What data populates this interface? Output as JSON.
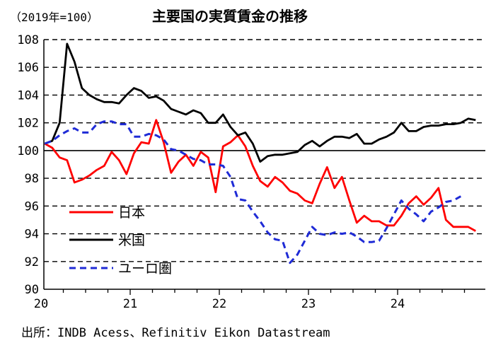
{
  "chart_data": {
    "type": "line",
    "title": "主要国の実質賃金の推移",
    "unit_label": "（2019年=100）",
    "source": "出所：INDB Acess、Refinitiv Eikon Datastream",
    "x_ticks": [
      "20",
      "21",
      "22",
      "23",
      "24"
    ],
    "x_start_month": 1,
    "ylim": [
      90,
      108
    ],
    "y_ticks": [
      90,
      92,
      94,
      96,
      98,
      100,
      102,
      104,
      106,
      108
    ],
    "grid": "dashed horizontal",
    "legend_position": "bottom-left",
    "series": [
      {
        "name": "日本",
        "color": "#ff0000",
        "dash": "solid",
        "values": [
          100.5,
          100.2,
          99.5,
          99.3,
          97.7,
          97.9,
          98.2,
          98.6,
          98.9,
          99.9,
          99.3,
          98.3,
          99.8,
          100.6,
          100.5,
          102.2,
          100.6,
          98.4,
          99.2,
          99.7,
          98.9,
          99.9,
          99.5,
          97.0,
          100.3,
          100.6,
          101.1,
          100.3,
          98.9,
          97.8,
          97.4,
          98.1,
          97.7,
          97.1,
          96.9,
          96.4,
          96.2,
          97.6,
          98.8,
          97.3,
          98.1,
          96.4,
          94.8,
          95.3,
          94.9,
          94.9,
          94.6,
          94.6,
          95.3,
          96.2,
          96.7,
          96.1,
          96.6,
          97.3,
          95.0,
          94.5,
          94.5,
          94.5,
          94.2
        ]
      },
      {
        "name": "米国",
        "color": "#000000",
        "dash": "solid",
        "values": [
          100.5,
          100.7,
          102.0,
          107.7,
          106.4,
          104.5,
          104.0,
          103.7,
          103.5,
          103.5,
          103.4,
          104.0,
          104.5,
          104.3,
          103.8,
          103.9,
          103.6,
          103.0,
          102.8,
          102.6,
          102.9,
          102.7,
          102.0,
          102.0,
          102.6,
          101.7,
          101.1,
          101.3,
          100.5,
          99.2,
          99.6,
          99.7,
          99.7,
          99.8,
          99.9,
          100.4,
          100.7,
          100.3,
          100.7,
          101.0,
          101.0,
          100.9,
          101.2,
          100.5,
          100.5,
          100.8,
          101.0,
          101.3,
          102.0,
          101.4,
          101.4,
          101.7,
          101.8,
          101.8,
          101.9,
          101.9,
          102.0,
          102.3,
          102.2
        ]
      },
      {
        "name": "ユーロ圏",
        "color": "#1f2bd6",
        "dash": "dashed",
        "values": [
          100.5,
          100.7,
          101.1,
          101.4,
          101.6,
          101.3,
          101.3,
          101.9,
          102.1,
          102.1,
          101.9,
          101.9,
          101.0,
          101.0,
          101.2,
          101.1,
          100.8,
          100.1,
          100.0,
          99.7,
          99.4,
          99.3,
          99.0,
          99.0,
          98.9,
          98.1,
          96.5,
          96.4,
          95.6,
          94.9,
          94.1,
          93.6,
          93.5,
          91.9,
          92.5,
          93.5,
          94.5,
          94.0,
          93.9,
          94.1,
          94.0,
          94.1,
          93.8,
          93.4,
          93.4,
          93.5,
          94.4,
          95.4,
          96.4,
          95.8,
          95.4,
          94.9,
          95.6,
          95.9,
          96.3,
          96.4,
          96.7
        ]
      }
    ]
  }
}
